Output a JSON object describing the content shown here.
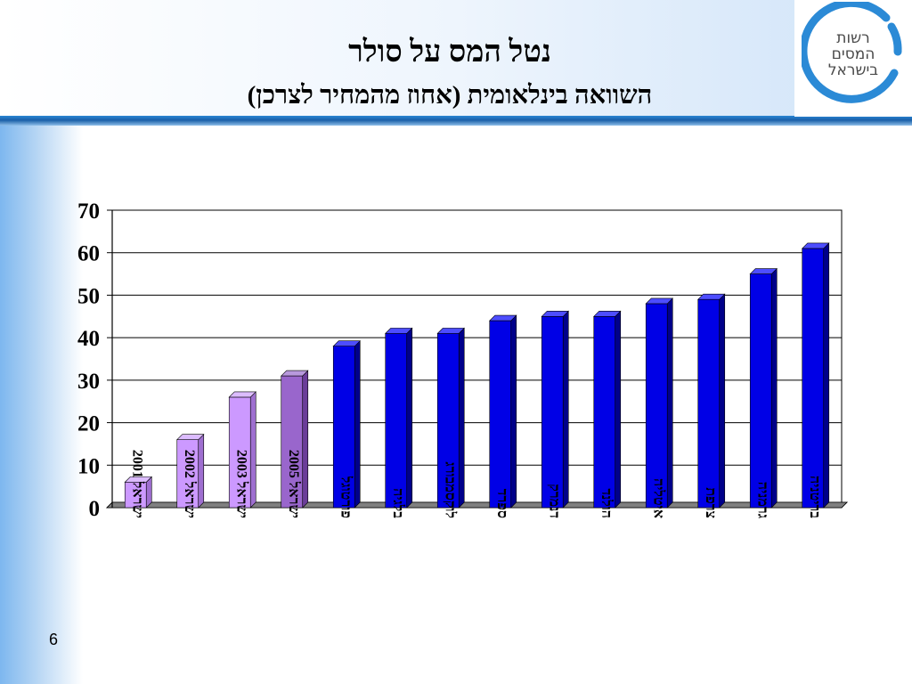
{
  "header": {
    "title": "נטל המס על סולר",
    "subtitle": "השוואה בינלאומית (אחוז מהמחיר לצרכן)",
    "logo_text": [
      "רשות",
      "המסים",
      "בישראל"
    ]
  },
  "page_number": "6",
  "colors": {
    "israel_bar": "#cc99ff",
    "israel_bar_highlight": "#9966cc",
    "country_bar": "#0000e6",
    "floor": "#808080",
    "accent_line": "#1a5fa8"
  },
  "chart_data": {
    "type": "bar",
    "title": "",
    "xlabel": "",
    "ylabel": "",
    "ylim": [
      0,
      70
    ],
    "yticks": [
      0,
      10,
      20,
      30,
      40,
      50,
      60,
      70
    ],
    "grid": true,
    "legend": "none",
    "categories": [
      "ישראל 2001",
      "ישראל 2002",
      "ישראל 2003",
      "ישראל 2005",
      "פורטוגל",
      "בלגיה",
      "לוקסמבורג",
      "ספרד",
      "דנמרק",
      "הולנד",
      "איטליה",
      "צרפת",
      "גרמניה",
      "בריטניה"
    ],
    "values": [
      6,
      16,
      26,
      31,
      38,
      41,
      41,
      44,
      45,
      45,
      48,
      49,
      55,
      61
    ],
    "bar_color_groups": [
      "israel",
      "israel",
      "israel",
      "israel-highlight",
      "country",
      "country",
      "country",
      "country",
      "country",
      "country",
      "country",
      "country",
      "country",
      "country"
    ]
  }
}
